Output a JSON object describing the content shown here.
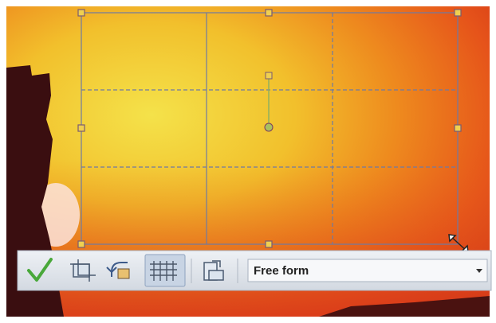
{
  "toolbar": {
    "aspect_dropdown": {
      "value": "Free form"
    }
  }
}
